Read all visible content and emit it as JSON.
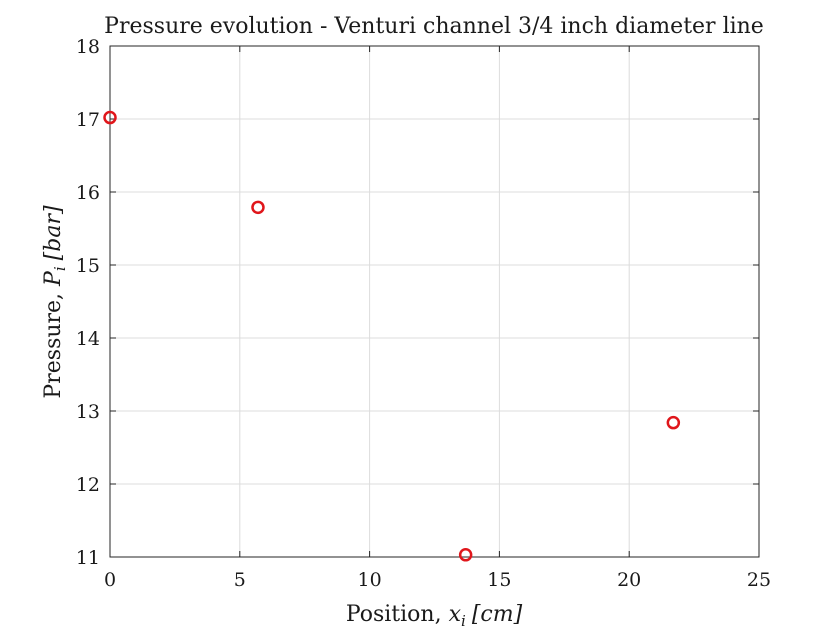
{
  "chart_data": {
    "type": "scatter",
    "title": "Pressure evolution - Venturi channel 3/4 inch diameter line",
    "xlabel": {
      "prefix": "Position, ",
      "var": "x",
      "sub": "i",
      "unit": "[cm]"
    },
    "ylabel": {
      "prefix": "Pressure, ",
      "var": "P",
      "sub": "i",
      "unit": "[bar]"
    },
    "xlim": [
      0,
      25
    ],
    "ylim": [
      11,
      18
    ],
    "xticks": [
      0,
      5,
      10,
      15,
      20,
      25
    ],
    "yticks": [
      11,
      12,
      13,
      14,
      15,
      16,
      17,
      18
    ],
    "grid": true,
    "marker": "circle-open",
    "color": "#e0161b",
    "series": [
      {
        "x": [
          0,
          5.7,
          13.7,
          21.7
        ],
        "y": [
          17.02,
          15.79,
          11.03,
          12.84
        ]
      }
    ]
  }
}
